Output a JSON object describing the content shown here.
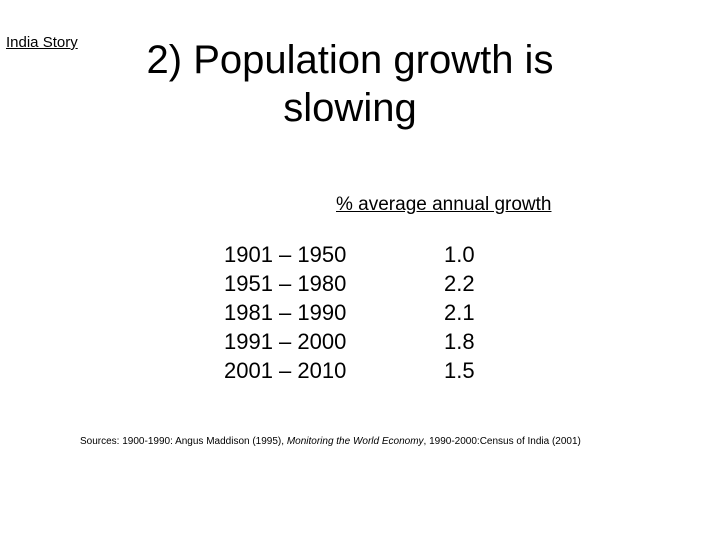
{
  "corner_label": "India Story",
  "title": "2) Population growth is slowing",
  "table": {
    "header": "% average annual growth",
    "rows": [
      {
        "period": "1901 – 1950",
        "value": "1.0"
      },
      {
        "period": "1951 – 1980",
        "value": "2.2"
      },
      {
        "period": "1981 – 1990",
        "value": "2.1"
      },
      {
        "period": "1991 – 2000",
        "value": "1.8"
      },
      {
        "period": "2001 – 2010",
        "value": "1.5"
      }
    ]
  },
  "sources": {
    "prefix": "Sources: 1900-1990: Angus Maddison (1995), ",
    "italic": "Monitoring the World Economy",
    "suffix": ", 1990-2000:Census of India (2001)"
  }
}
